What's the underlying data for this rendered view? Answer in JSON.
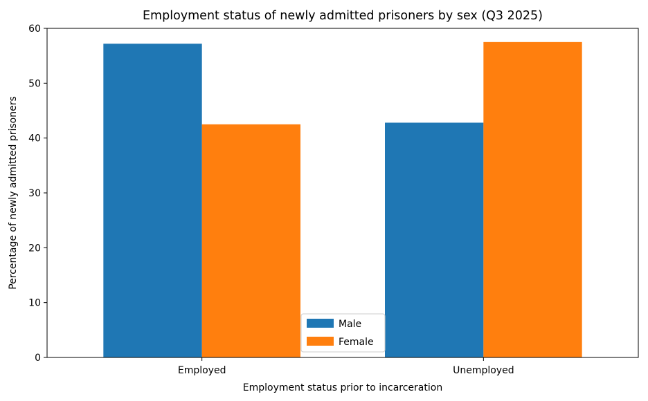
{
  "chart_data": {
    "type": "bar",
    "title": "Employment status of newly admitted prisoners by sex (Q3 2025)",
    "xlabel": "Employment status prior to incarceration",
    "ylabel": "Percentage of newly admitted prisoners",
    "categories": [
      "Employed",
      "Unemployed"
    ],
    "series": [
      {
        "name": "Male",
        "color": "#1f77b4",
        "values": [
          57.2,
          42.8
        ]
      },
      {
        "name": "Female",
        "color": "#ff7f0e",
        "values": [
          42.5,
          57.5
        ]
      }
    ],
    "ylim": [
      0,
      60
    ],
    "yticks": [
      0,
      10,
      20,
      30,
      40,
      50,
      60
    ],
    "grid": false,
    "legend_position": "lower-center"
  }
}
